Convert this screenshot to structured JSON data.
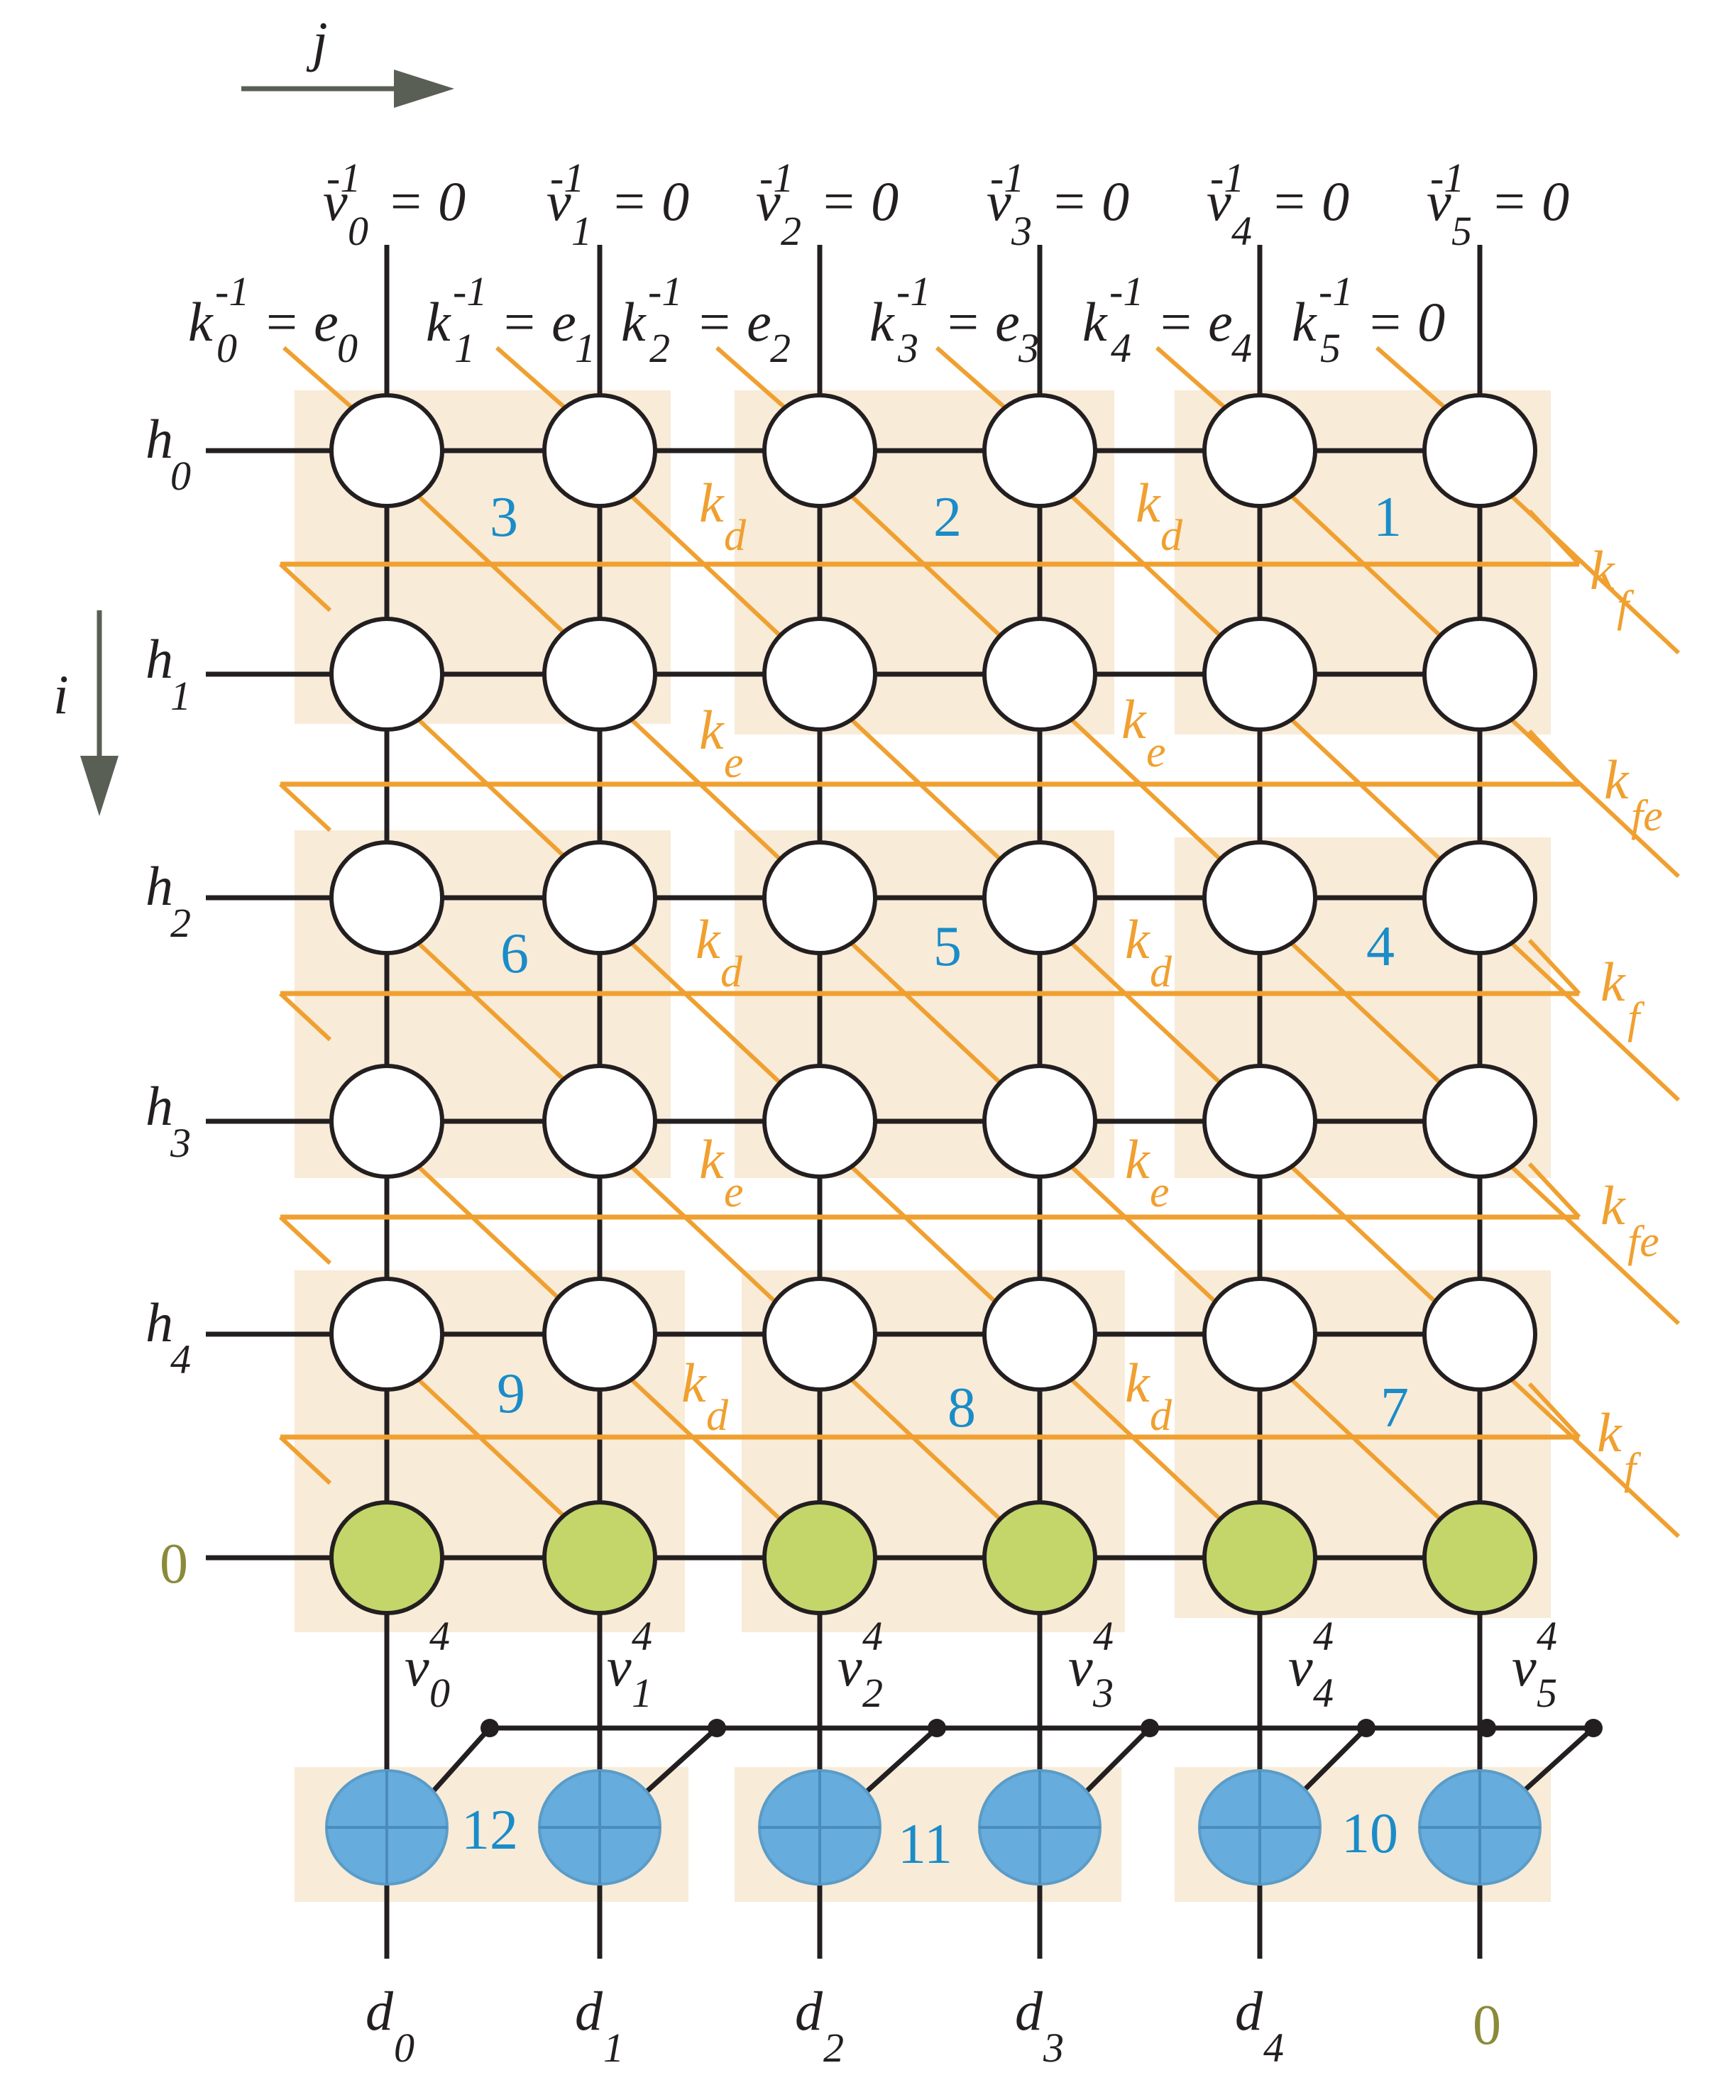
{
  "colors": {
    "block_fill": "#f8ebd8",
    "orange_line": "#f0a030",
    "dark_line": "#231f20",
    "node_white": "#ffffff",
    "node_green": "#c4d66a",
    "node_blue": "#66acdc",
    "label_blue": "#1a8cc8",
    "label_olive": "#8a8a3a",
    "arrow_grey": "#5a5f55"
  },
  "axes": {
    "j_label": "j",
    "i_label": "i"
  },
  "top_inputs": [
    {
      "base": "v",
      "sup": "-1",
      "sub": "0",
      "eq": "= 0"
    },
    {
      "base": "v",
      "sup": "-1",
      "sub": "1",
      "eq": "= 0"
    },
    {
      "base": "v",
      "sup": "-1",
      "sub": "2",
      "eq": "= 0"
    },
    {
      "base": "v",
      "sup": "-1",
      "sub": "3",
      "eq": "= 0"
    },
    {
      "base": "v",
      "sup": "-1",
      "sub": "4",
      "eq": "= 0"
    },
    {
      "base": "v",
      "sup": "-1",
      "sub": "5",
      "eq": "= 0"
    }
  ],
  "k_inputs": [
    {
      "base": "k",
      "sup": "-1",
      "sub": "0",
      "eq": "= e",
      "esub": "0"
    },
    {
      "base": "k",
      "sup": "-1",
      "sub": "1",
      "eq": "= e",
      "esub": "1"
    },
    {
      "base": "k",
      "sup": "-1",
      "sub": "2",
      "eq": "= e",
      "esub": "2"
    },
    {
      "base": "k",
      "sup": "-1",
      "sub": "3",
      "eq": "= e",
      "esub": "3"
    },
    {
      "base": "k",
      "sup": "-1",
      "sub": "4",
      "eq": "= e",
      "esub": "4"
    },
    {
      "base": "k",
      "sup": "-1",
      "sub": "5",
      "eq": "= 0",
      "esub": ""
    }
  ],
  "row_inputs": [
    {
      "base": "h",
      "sub": "0"
    },
    {
      "base": "h",
      "sub": "1"
    },
    {
      "base": "h",
      "sub": "2"
    },
    {
      "base": "h",
      "sub": "3"
    },
    {
      "base": "h",
      "sub": "4"
    }
  ],
  "green_row_input": "0",
  "v_outputs": [
    {
      "base": "v",
      "sup": "4",
      "sub": "0"
    },
    {
      "base": "v",
      "sup": "4",
      "sub": "1"
    },
    {
      "base": "v",
      "sup": "4",
      "sub": "2"
    },
    {
      "base": "v",
      "sup": "4",
      "sub": "3"
    },
    {
      "base": "v",
      "sup": "4",
      "sub": "4"
    },
    {
      "base": "v",
      "sup": "4",
      "sub": "5"
    }
  ],
  "bottom_outputs": [
    {
      "base": "d",
      "sub": "0"
    },
    {
      "base": "d",
      "sub": "1"
    },
    {
      "base": "d",
      "sub": "2"
    },
    {
      "base": "d",
      "sub": "3"
    },
    {
      "base": "d",
      "sub": "4"
    },
    {
      "base": "0",
      "sub": ""
    }
  ],
  "block_numbers": [
    "3",
    "2",
    "1",
    "6",
    "5",
    "4",
    "9",
    "8",
    "7",
    "12",
    "11",
    "10"
  ],
  "k_mid_labels": [
    {
      "base": "k",
      "sub": "d"
    },
    {
      "base": "k",
      "sub": "d"
    },
    {
      "base": "k",
      "sub": "e"
    },
    {
      "base": "k",
      "sub": "e"
    },
    {
      "base": "k",
      "sub": "d"
    },
    {
      "base": "k",
      "sub": "d"
    },
    {
      "base": "k",
      "sub": "e"
    },
    {
      "base": "k",
      "sub": "e"
    },
    {
      "base": "k",
      "sub": "d"
    },
    {
      "base": "k",
      "sub": "d"
    }
  ],
  "k_right_labels": [
    {
      "base": "k",
      "sub": "f"
    },
    {
      "base": "k",
      "sub": "fe"
    },
    {
      "base": "k",
      "sub": "f"
    },
    {
      "base": "k",
      "sub": "fe"
    },
    {
      "base": "k",
      "sub": "f"
    }
  ]
}
